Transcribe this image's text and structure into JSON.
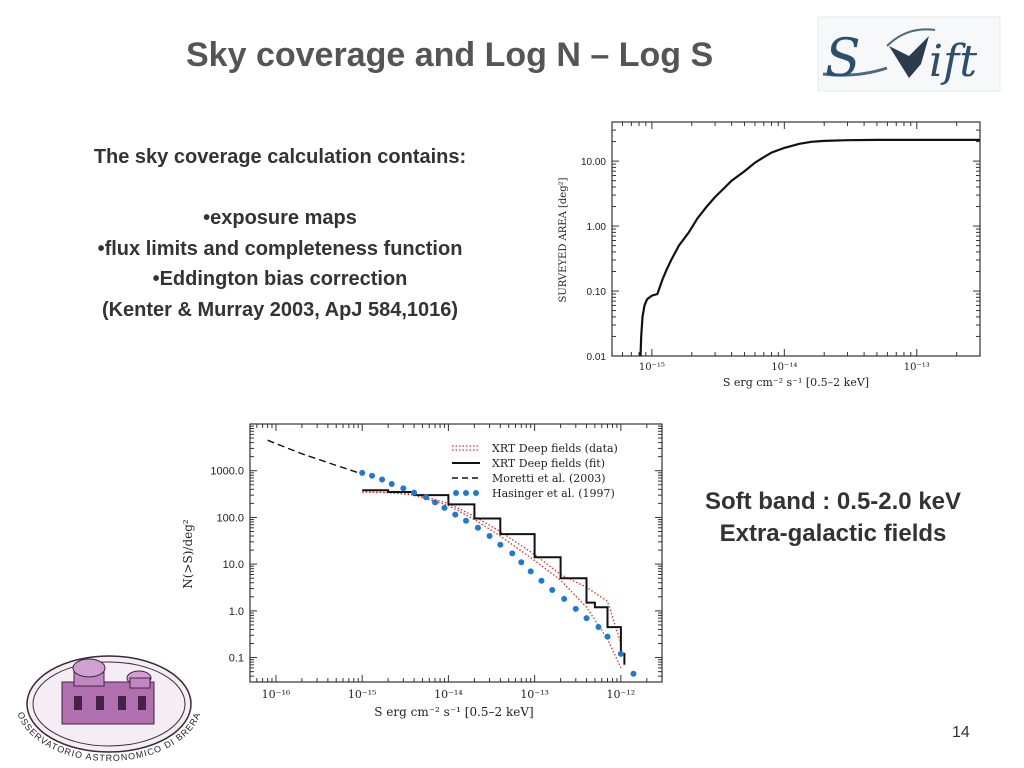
{
  "slide": {
    "title": "Sky coverage and Log N – Log S",
    "page_number": "14",
    "logo_text": "Swift",
    "seal_text": "OSSERVATORIO ASTRONOMICO DI BRERA"
  },
  "left_text": {
    "heading": "The sky coverage calculation  contains:",
    "items": [
      "•exposure maps",
      "•flux limits and  completeness function",
      "•Eddington bias correction"
    ],
    "reference": "(Kenter & Murray 2003, ApJ 584,1016)"
  },
  "right_text": {
    "line1": "Soft band : 0.5-2.0 keV",
    "line2": "Extra-galactic fields"
  },
  "colors": {
    "text": "#333333",
    "title": "#555555",
    "red": "#e03020",
    "blue": "#1e78d8"
  },
  "chart_data": [
    {
      "type": "line",
      "xscale": "log",
      "yscale": "log",
      "xlim": [
        5e-16,
        3e-13
      ],
      "ylim": [
        0.01,
        40
      ],
      "xlabel": "S erg cm⁻² s⁻¹ [0.5–2 keV]",
      "ylabel": "SURVEYED  AREA  [deg²]",
      "xticks": [
        {
          "value": 1e-15,
          "label": "10⁻¹⁵"
        },
        {
          "value": 1e-14,
          "label": "10⁻¹⁴"
        },
        {
          "value": 1e-13,
          "label": "10⁻¹³"
        }
      ],
      "yticks": [
        {
          "value": 0.01,
          "label": "0.01"
        },
        {
          "value": 0.1,
          "label": "0.10"
        },
        {
          "value": 1,
          "label": "1.00"
        },
        {
          "value": 10,
          "label": "10.00"
        }
      ],
      "series": [
        {
          "x": [
            8.2e-16,
            8.3e-16,
            8.5e-16,
            8.8e-16,
            9.2e-16,
            1e-15,
            1.1e-15,
            1.2e-15,
            1.3e-15,
            1.4e-15,
            1.6e-15,
            1.9e-15,
            2.2e-15,
            2.6e-15,
            3e-15,
            3.5e-15,
            4e-15,
            5e-15,
            6e-15,
            7e-15,
            8e-15,
            1e-14,
            1.3e-14,
            1.6e-14,
            2e-14,
            3e-14,
            5e-14,
            1e-13,
            3e-13
          ],
          "y": [
            0.008,
            0.02,
            0.04,
            0.06,
            0.075,
            0.085,
            0.09,
            0.15,
            0.22,
            0.3,
            0.5,
            0.8,
            1.3,
            2.0,
            2.8,
            3.8,
            5.0,
            7.0,
            9.5,
            11.5,
            13.5,
            16.0,
            18.5,
            19.8,
            20.5,
            21.0,
            21.2,
            21.2,
            21.2
          ]
        }
      ]
    },
    {
      "type": "line",
      "xscale": "log",
      "yscale": "log",
      "xlim": [
        5e-17,
        3e-12
      ],
      "ylim": [
        0.03,
        10000
      ],
      "xlabel": "S erg cm⁻² s⁻¹ [0.5–2 keV]",
      "ylabel": "N(>S)/deg²",
      "xticks": [
        {
          "value": 1e-16,
          "label": "10⁻¹⁶"
        },
        {
          "value": 1e-15,
          "label": "10⁻¹⁵"
        },
        {
          "value": 1e-14,
          "label": "10⁻¹⁴"
        },
        {
          "value": 1e-13,
          "label": "10⁻¹³"
        },
        {
          "value": 1e-12,
          "label": "10⁻¹²"
        }
      ],
      "yticks": [
        {
          "value": 0.1,
          "label": "0.1"
        },
        {
          "value": 1,
          "label": "1.0"
        },
        {
          "value": 10,
          "label": "10.0"
        },
        {
          "value": 100,
          "label": "100.0"
        },
        {
          "value": 1000,
          "label": "1000.0"
        }
      ],
      "legend": "top-right",
      "series": [
        {
          "name": "XRT Deep fields (data)",
          "style": "red-dotted-band",
          "x": [
            1e-15,
            2e-15,
            4e-15,
            1e-14,
            2e-14,
            4e-14,
            1e-13,
            2e-13,
            4e-13,
            7e-13,
            1e-12
          ],
          "y": [
            350,
            340,
            300,
            180,
            90,
            40,
            12,
            4.5,
            1.2,
            0.25,
            0.06
          ],
          "y2": [
            350,
            340,
            320,
            200,
            105,
            50,
            16,
            6,
            3.2,
            1.6,
            0.2
          ]
        },
        {
          "name": "XRT Deep fields (fit)",
          "style": "black-solid",
          "x": [
            1e-15,
            2e-15,
            4e-15,
            1e-14,
            2e-14,
            4e-14,
            1e-13,
            2e-13,
            4e-13,
            5e-13,
            7e-13,
            1e-12,
            1.1e-12
          ],
          "y": [
            380,
            350,
            300,
            190,
            95,
            44,
            14,
            5,
            1.5,
            1.2,
            0.45,
            0.12,
            0.07
          ]
        },
        {
          "name": "Moretti et al. (2003)",
          "style": "black-dashed",
          "x": [
            8e-17,
            1e-16,
            2e-16,
            5e-16,
            1e-15
          ],
          "y": [
            4500,
            3800,
            2300,
            1300,
            850
          ]
        },
        {
          "name": "Hasinger et al. (1997)",
          "style": "blue-dots",
          "x": [
            1e-15,
            1.3e-15,
            1.7e-15,
            2.2e-15,
            3e-15,
            4e-15,
            5.5e-15,
            7e-15,
            9e-15,
            1.2e-14,
            1.6e-14,
            2.2e-14,
            3e-14,
            4e-14,
            5.5e-14,
            7e-14,
            9e-14,
            1.2e-13,
            1.6e-13,
            2.2e-13,
            3e-13,
            4e-13,
            5.5e-13,
            7e-13,
            1e-12,
            1.4e-12
          ],
          "y": [
            900,
            780,
            650,
            520,
            420,
            340,
            270,
            210,
            160,
            115,
            85,
            60,
            40,
            26,
            17,
            11,
            7,
            4.4,
            2.8,
            1.8,
            1.1,
            0.7,
            0.45,
            0.28,
            0.12,
            0.045
          ]
        }
      ]
    }
  ]
}
